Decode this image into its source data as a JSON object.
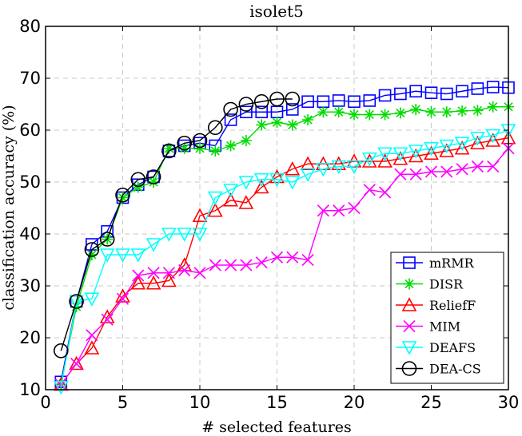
{
  "chart_data": {
    "type": "line",
    "title": "isolet5",
    "xlabel": "# selected features",
    "ylabel": "classification accuracy (%)",
    "xlim": [
      0,
      30
    ],
    "ylim": [
      10,
      80
    ],
    "xticks": [
      "0",
      "5",
      "10",
      "15",
      "20",
      "25",
      "30"
    ],
    "yticks": [
      "10",
      "20",
      "30",
      "40",
      "50",
      "60",
      "70",
      "80"
    ],
    "grid": true,
    "legend_position": "bottom-right",
    "series": [
      {
        "name": "mRMR",
        "color": "#0000ff",
        "marker": "square",
        "x": [
          1,
          2,
          3,
          4,
          5,
          6,
          7,
          8,
          9,
          10,
          11,
          12,
          13,
          14,
          15,
          16,
          17,
          18,
          19,
          20,
          21,
          22,
          23,
          24,
          25,
          26,
          27,
          28,
          29,
          30
        ],
        "y": [
          11.5,
          27,
          38,
          40.5,
          47,
          49.5,
          51,
          56,
          57,
          57.5,
          57,
          62,
          63.5,
          63.5,
          63.5,
          64,
          65.5,
          65.5,
          65.7,
          65.5,
          65.7,
          66.7,
          67,
          67.5,
          67.2,
          67,
          67.5,
          68,
          68.3,
          68.2
        ]
      },
      {
        "name": "DISR",
        "color": "#00dd00",
        "marker": "star",
        "x": [
          1,
          2,
          3,
          4,
          5,
          6,
          7,
          8,
          9,
          10,
          11,
          12,
          13,
          14,
          15,
          16,
          17,
          18,
          19,
          20,
          21,
          22,
          23,
          24,
          25,
          26,
          27,
          28,
          29,
          30
        ],
        "y": [
          11,
          26,
          36,
          39,
          47,
          49,
          50,
          56.5,
          56.5,
          56.5,
          56,
          57,
          58,
          61,
          61.5,
          61,
          62,
          63.5,
          63.5,
          63,
          63,
          63,
          63.3,
          64,
          63.5,
          63.5,
          63.7,
          63.8,
          64.5,
          64.5
        ]
      },
      {
        "name": "ReliefF",
        "color": "#ff0000",
        "marker": "triangle-up",
        "x": [
          1,
          2,
          3,
          4,
          5,
          6,
          7,
          8,
          9,
          10,
          11,
          12,
          13,
          14,
          15,
          16,
          17,
          18,
          19,
          20,
          21,
          22,
          23,
          24,
          25,
          26,
          27,
          28,
          29,
          30
        ],
        "y": [
          11,
          15,
          18,
          24,
          28,
          30.5,
          30.5,
          31,
          34,
          43.5,
          44.5,
          46.5,
          46,
          49,
          51,
          52.5,
          53.5,
          53.5,
          53.5,
          54,
          54,
          54,
          54.5,
          55,
          55.5,
          56,
          56.5,
          57.5,
          58,
          58.5
        ]
      },
      {
        "name": "MIM",
        "color": "#ff00ff",
        "marker": "x",
        "x": [
          1,
          2,
          3,
          4,
          5,
          6,
          7,
          8,
          9,
          10,
          11,
          12,
          13,
          14,
          15,
          16,
          17,
          18,
          19,
          20,
          21,
          22,
          23,
          24,
          25,
          26,
          27,
          28,
          29,
          30
        ],
        "y": [
          11,
          15,
          20.5,
          23.5,
          27.5,
          32,
          32.5,
          32.5,
          33,
          32.5,
          34,
          34,
          34,
          34.5,
          35.5,
          35.5,
          35,
          44.5,
          44.5,
          45,
          48.5,
          48,
          51.5,
          51.5,
          52,
          52,
          52.5,
          53,
          53,
          56.5
        ]
      },
      {
        "name": "DEAFS",
        "color": "#00ffff",
        "marker": "triangle-down",
        "x": [
          1,
          2,
          3,
          4,
          5,
          6,
          7,
          8,
          9,
          10,
          11,
          12,
          13,
          14,
          15,
          16,
          17,
          18,
          19,
          20,
          21,
          22,
          23,
          24,
          25,
          26,
          27,
          28,
          29,
          30
        ],
        "y": [
          10.5,
          27,
          27.5,
          36,
          36,
          36,
          38,
          40,
          40,
          40,
          47,
          48.5,
          50,
          50.5,
          50.5,
          50,
          51.5,
          52.5,
          53,
          53,
          54.5,
          55.5,
          55.5,
          56,
          56.5,
          57,
          57.5,
          58.5,
          59,
          60
        ]
      },
      {
        "name": "DEA-CS",
        "color": "#000000",
        "marker": "circle",
        "x": [
          1,
          2,
          3,
          4,
          5,
          6,
          7,
          8,
          9,
          10,
          11,
          12,
          13,
          14,
          15,
          16
        ],
        "y": [
          17.5,
          27,
          37,
          39,
          47.5,
          50.5,
          51,
          56,
          57.5,
          58,
          60.5,
          64,
          65,
          65.5,
          66,
          66
        ]
      }
    ]
  }
}
